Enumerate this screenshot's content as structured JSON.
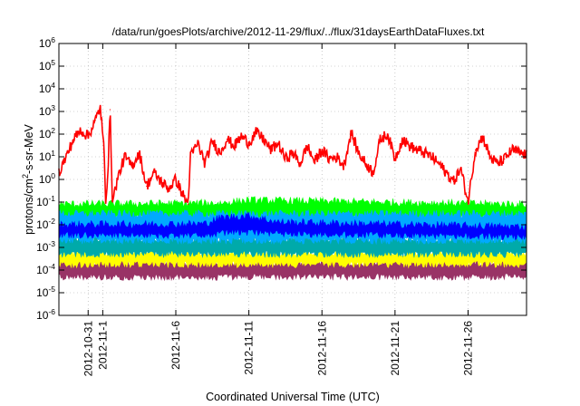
{
  "chart_data": {
    "type": "area",
    "title": "/data/run/goesPlots/archive/2012-11-29/flux/../flux/31daysEarthDataFluxes.txt",
    "xlabel": "Coordinated Universal Time (UTC)",
    "ylabel": "protons/cm2-s-sr-MeV",
    "ylabel_parts": [
      "protons/cm",
      "2",
      "-s-sr-MeV"
    ],
    "y_scale": "log",
    "ylim": [
      1e-06,
      1000000.0
    ],
    "y_ticks": [
      {
        "value": 1e-06,
        "exp": "-6"
      },
      {
        "value": 1e-05,
        "exp": "-5"
      },
      {
        "value": 0.0001,
        "exp": "-4"
      },
      {
        "value": 0.001,
        "exp": "-3"
      },
      {
        "value": 0.01,
        "exp": "-2"
      },
      {
        "value": 0.1,
        "exp": "-1"
      },
      {
        "value": 1,
        "exp": "0"
      },
      {
        "value": 10,
        "exp": "1"
      },
      {
        "value": 100,
        "exp": "2"
      },
      {
        "value": 1000,
        "exp": "3"
      },
      {
        "value": 10000,
        "exp": "4"
      },
      {
        "value": 100000,
        "exp": "5"
      },
      {
        "value": 1000000,
        "exp": "6"
      }
    ],
    "xlim": [
      "2012-10-29",
      "2012-11-30"
    ],
    "x_ticks": [
      "2012-10-31",
      "2012-11-1",
      "2012-11-6",
      "2012-11-11",
      "2012-11-16",
      "2012-11-21",
      "2012-11-26"
    ],
    "x_tick_dates": [
      "2012-10-31",
      "2012-11-01",
      "2012-11-06",
      "2012-11-11",
      "2012-11-16",
      "2012-11-21",
      "2012-11-26"
    ],
    "grid": true,
    "legend": "none",
    "series": [
      {
        "color": "#993366",
        "style": "band",
        "lower": [
          [
            "2012-10-29",
            5e-05
          ],
          [
            "2012-11-30",
            5e-05
          ]
        ],
        "upper": [
          [
            "2012-10-29",
            0.00022
          ],
          [
            "2012-11-30",
            0.00022
          ]
        ]
      },
      {
        "color": "#ffff00",
        "style": "band",
        "lower": [
          [
            "2012-10-29",
            0.00018
          ],
          [
            "2012-11-30",
            0.00018
          ]
        ],
        "upper": [
          [
            "2012-10-29",
            0.0006
          ],
          [
            "2012-11-30",
            0.0006
          ]
        ]
      },
      {
        "color": "#00aaaa",
        "style": "band",
        "lower": [
          [
            "2012-10-29",
            0.0005
          ],
          [
            "2012-11-30",
            0.0005
          ]
        ],
        "upper": [
          [
            "2012-10-29",
            0.0025
          ],
          [
            "2012-11-30",
            0.0025
          ]
        ]
      },
      {
        "color": "#00ff00",
        "style": "band",
        "lower": [
          [
            "2012-10-29",
            0.02
          ],
          [
            "2012-11-30",
            0.02
          ]
        ],
        "upper": [
          [
            "2012-10-29",
            0.08
          ],
          [
            "2012-11-09",
            0.09
          ],
          [
            "2012-11-11",
            0.12
          ],
          [
            "2012-11-30",
            0.08
          ]
        ]
      },
      {
        "color": "#00aaff",
        "style": "band",
        "lower": [
          [
            "2012-10-29",
            0.002
          ],
          [
            "2012-11-30",
            0.002
          ]
        ],
        "upper": [
          [
            "2012-10-29",
            0.03
          ],
          [
            "2012-11-30",
            0.03
          ]
        ]
      },
      {
        "color": "#0000ff",
        "style": "band",
        "lower": [
          [
            "2012-10-29",
            0.0035
          ],
          [
            "2012-11-08",
            0.0035
          ],
          [
            "2012-11-10",
            0.005
          ],
          [
            "2012-11-13",
            0.004
          ],
          [
            "2012-11-30",
            0.003
          ]
        ],
        "upper": [
          [
            "2012-10-29",
            0.01
          ],
          [
            "2012-11-08",
            0.011
          ],
          [
            "2012-11-09",
            0.02
          ],
          [
            "2012-11-11",
            0.025
          ],
          [
            "2012-11-13",
            0.013
          ],
          [
            "2012-11-30",
            0.008
          ]
        ]
      },
      {
        "color": "#ff0000",
        "style": "line",
        "points": [
          [
            "2012-10-29",
            2
          ],
          [
            "2012-10-29T12:00",
            10
          ],
          [
            "2012-10-30",
            60
          ],
          [
            "2012-10-30T12:00",
            150
          ],
          [
            "2012-10-31",
            80
          ],
          [
            "2012-10-31T12:00",
            400
          ],
          [
            "2012-10-31T20:00",
            1600
          ],
          [
            "2012-11-01T02:00",
            20
          ],
          [
            "2012-11-01T05:00",
            0.1
          ],
          [
            "2012-11-01T09:00",
            5
          ],
          [
            "2012-11-01T12:00",
            1200
          ],
          [
            "2012-11-01T16:00",
            0.1
          ],
          [
            "2012-11-02",
            1
          ],
          [
            "2012-11-02T12:00",
            10
          ],
          [
            "2012-11-03",
            4
          ],
          [
            "2012-11-03T12:00",
            15
          ],
          [
            "2012-11-04",
            0.5
          ],
          [
            "2012-11-04T12:00",
            2
          ],
          [
            "2012-11-05",
            0.8
          ],
          [
            "2012-11-05T12:00",
            0.4
          ],
          [
            "2012-11-06",
            1
          ],
          [
            "2012-11-06T12:00",
            0.2
          ],
          [
            "2012-11-06T20:00",
            0.08
          ],
          [
            "2012-11-07",
            10
          ],
          [
            "2012-11-07T12:00",
            40
          ],
          [
            "2012-11-08",
            5
          ],
          [
            "2012-11-08T12:00",
            50
          ],
          [
            "2012-11-09",
            15
          ],
          [
            "2012-11-09T12:00",
            60
          ],
          [
            "2012-11-10",
            30
          ],
          [
            "2012-11-10T12:00",
            80
          ],
          [
            "2012-11-11",
            40
          ],
          [
            "2012-11-11T12:00",
            120
          ],
          [
            "2012-11-12",
            60
          ],
          [
            "2012-11-12T12:00",
            20
          ],
          [
            "2012-11-13",
            40
          ],
          [
            "2012-11-13T12:00",
            8
          ],
          [
            "2012-11-14",
            15
          ],
          [
            "2012-11-14T12:00",
            5
          ],
          [
            "2012-11-15",
            30
          ],
          [
            "2012-11-15T12:00",
            6
          ],
          [
            "2012-11-16",
            20
          ],
          [
            "2012-11-16T12:00",
            8
          ],
          [
            "2012-11-17",
            10
          ],
          [
            "2012-11-17T12:00",
            4
          ],
          [
            "2012-11-18",
            120
          ],
          [
            "2012-11-18T12:00",
            15
          ],
          [
            "2012-11-19",
            5
          ],
          [
            "2012-11-19T12:00",
            2
          ],
          [
            "2012-11-20",
            60
          ],
          [
            "2012-11-20T12:00",
            100
          ],
          [
            "2012-11-21",
            8
          ],
          [
            "2012-11-21T12:00",
            60
          ],
          [
            "2012-11-22",
            30
          ],
          [
            "2012-11-22T12:00",
            20
          ],
          [
            "2012-11-23",
            15
          ],
          [
            "2012-11-23T12:00",
            10
          ],
          [
            "2012-11-24",
            5
          ],
          [
            "2012-11-24T12:00",
            2
          ],
          [
            "2012-11-25",
            0.8
          ],
          [
            "2012-11-25T12:00",
            3
          ],
          [
            "2012-11-26",
            0.1
          ],
          [
            "2012-11-26T12:00",
            20
          ],
          [
            "2012-11-27",
            80
          ],
          [
            "2012-11-27T12:00",
            10
          ],
          [
            "2012-11-28",
            5
          ],
          [
            "2012-11-28T12:00",
            8
          ],
          [
            "2012-11-29",
            20
          ],
          [
            "2012-11-29T12:00",
            15
          ],
          [
            "2012-11-30",
            12
          ]
        ]
      }
    ]
  }
}
